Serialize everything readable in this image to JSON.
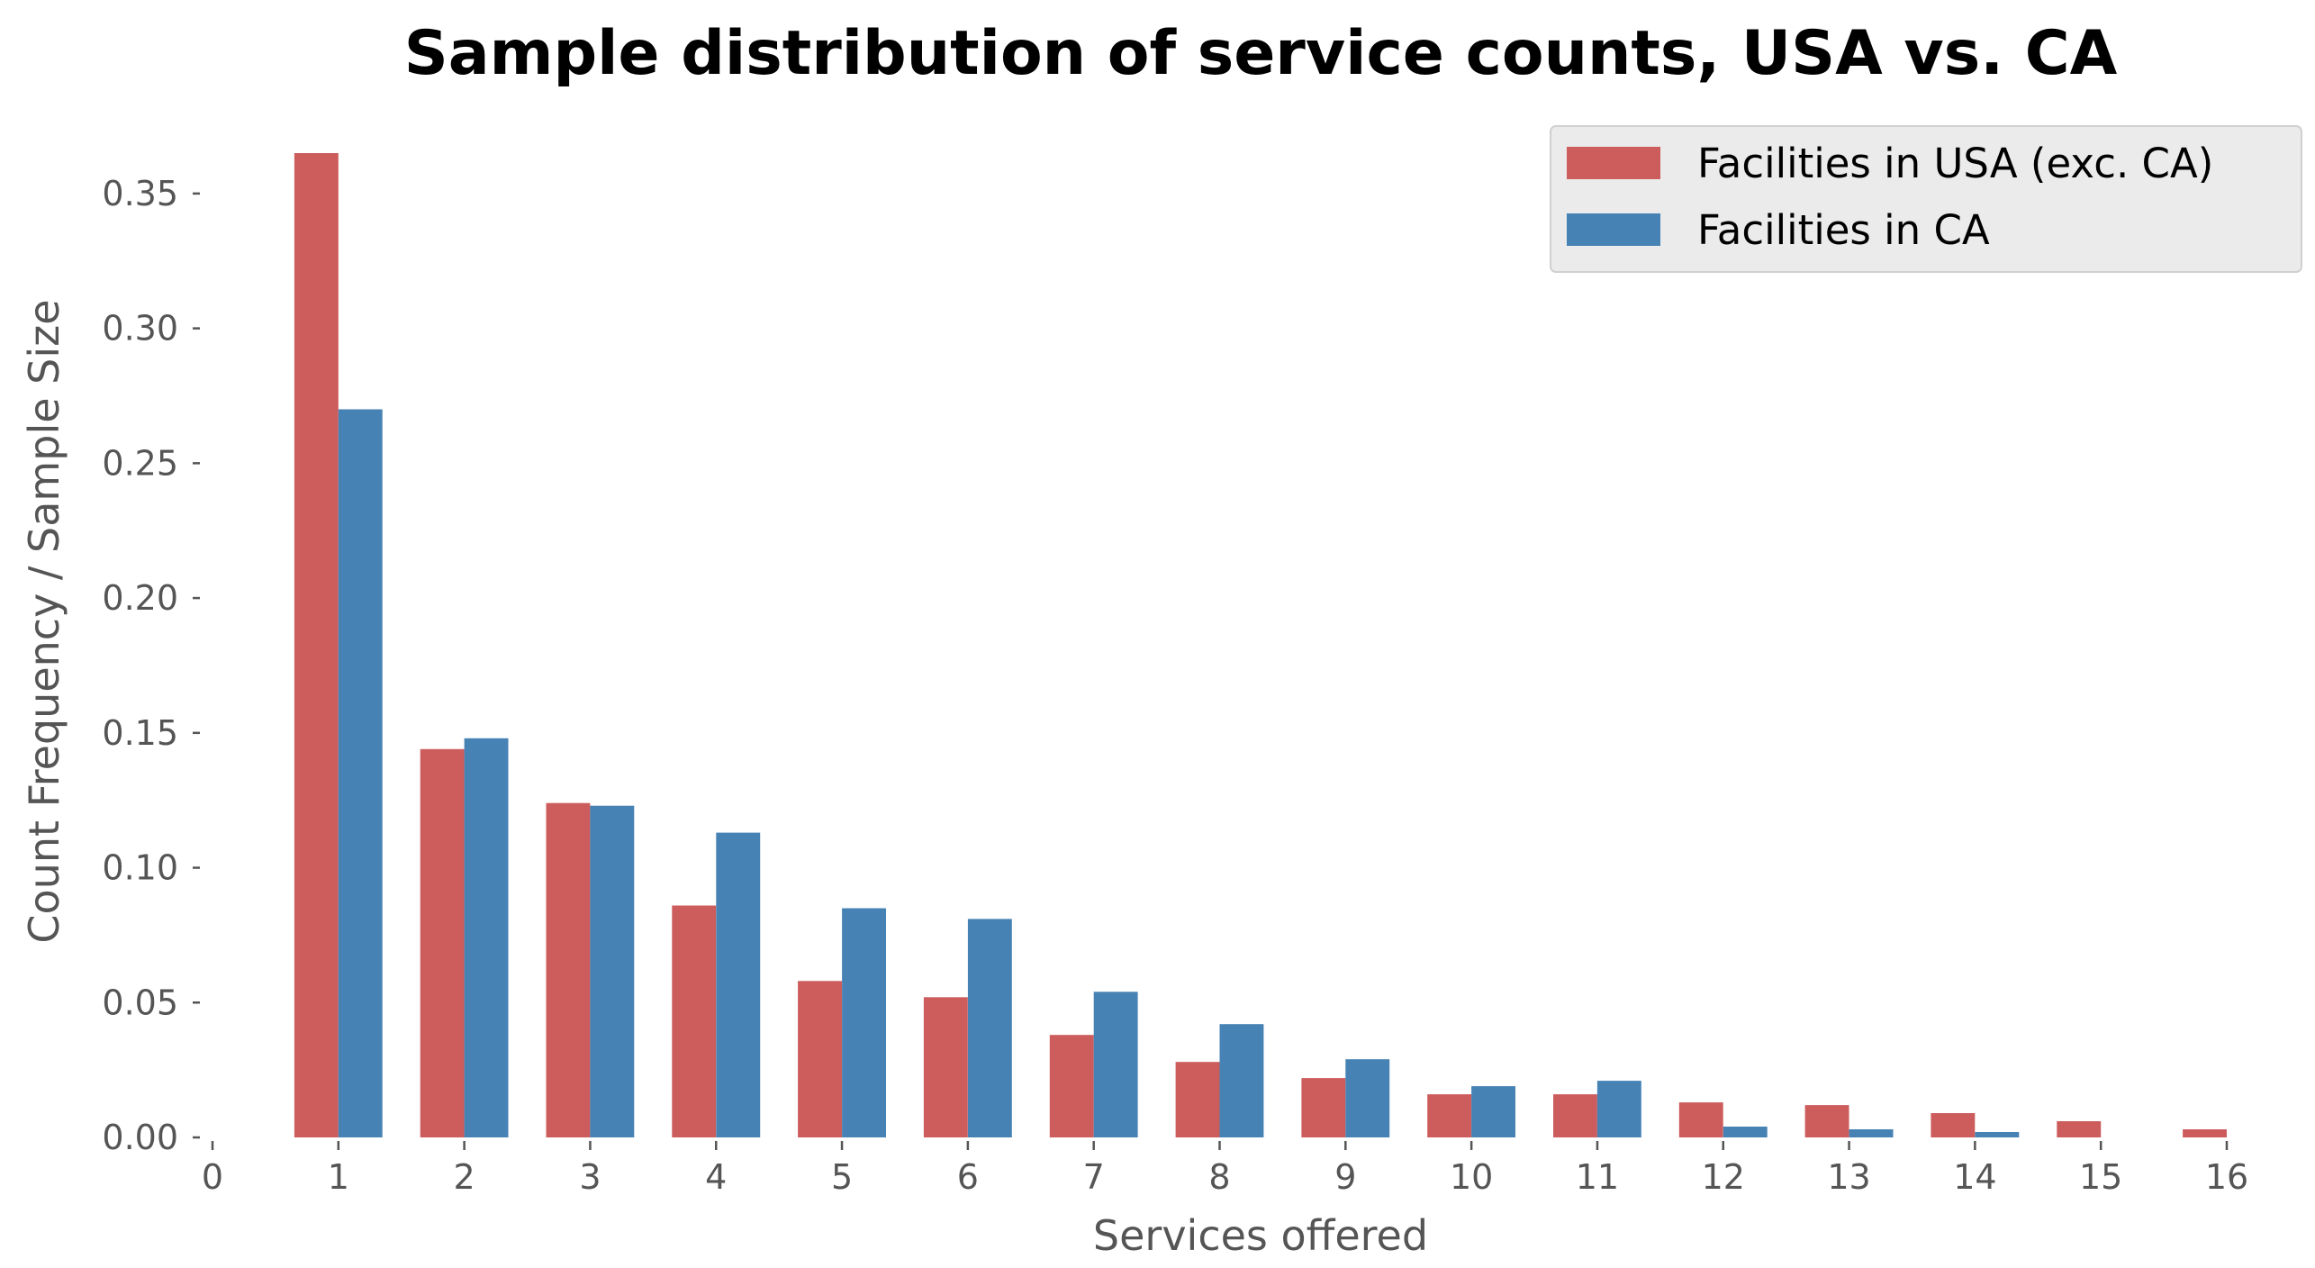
{
  "chart_data": {
    "type": "bar",
    "title": "Sample distribution of service counts, USA vs. CA",
    "xlabel": "Services offered",
    "ylabel": "Count Frequency / Sample Size",
    "x_ticks": [
      "0",
      "1",
      "2",
      "3",
      "4",
      "5",
      "6",
      "7",
      "8",
      "9",
      "10",
      "11",
      "12",
      "13",
      "14",
      "15",
      "16"
    ],
    "y_ticks": [
      "0.00",
      "0.05",
      "0.10",
      "0.15",
      "0.20",
      "0.25",
      "0.30",
      "0.35"
    ],
    "xlim": [
      0,
      16
    ],
    "ylim": [
      0,
      0.37
    ],
    "categories": [
      1,
      2,
      3,
      4,
      5,
      6,
      7,
      8,
      9,
      10,
      11,
      12,
      13,
      14,
      15,
      16
    ],
    "series": [
      {
        "name": "Facilities in USA (exc. CA)",
        "color": "#cd5c5c",
        "values": [
          0.365,
          0.144,
          0.124,
          0.086,
          0.058,
          0.052,
          0.038,
          0.028,
          0.022,
          0.016,
          0.016,
          0.013,
          0.012,
          0.009,
          0.006,
          0.003
        ]
      },
      {
        "name": "Facilities in CA",
        "color": "#4682b4",
        "values": [
          0.27,
          0.148,
          0.123,
          0.113,
          0.085,
          0.081,
          0.054,
          0.042,
          0.029,
          0.019,
          0.021,
          0.004,
          0.003,
          0.002,
          0,
          0
        ]
      }
    ],
    "legend_position": "top-right",
    "grid": false
  }
}
